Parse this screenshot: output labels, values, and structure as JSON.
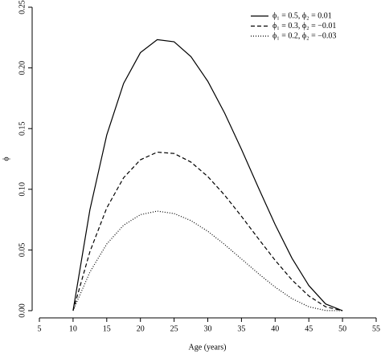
{
  "chart_data": {
    "type": "line",
    "xlabel": "Age (years)",
    "ylabel": "ϕ",
    "x": [
      10,
      12.5,
      15,
      17.5,
      20,
      22.5,
      25,
      27.5,
      30,
      32.5,
      35,
      37.5,
      40,
      42.5,
      45,
      47.5,
      50
    ],
    "series": [
      {
        "name": "ϕ₁ = 0.5, ϕ₂ = 0.01",
        "color": "#000000",
        "linestyle": "solid",
        "values": [
          0,
          0.0831,
          0.1447,
          0.1872,
          0.2126,
          0.2233,
          0.2215,
          0.2093,
          0.189,
          0.1628,
          0.1329,
          0.1015,
          0.0709,
          0.0432,
          0.0207,
          0.0055,
          0
        ]
      },
      {
        "name": "ϕ₁ = 0.3, ϕ₂ = −0.01",
        "color": "#000000",
        "linestyle": "dashed",
        "values": [
          0,
          0.0486,
          0.0846,
          0.1095,
          0.1243,
          0.1306,
          0.1295,
          0.1224,
          0.1105,
          0.0952,
          0.0777,
          0.0594,
          0.0415,
          0.0253,
          0.0121,
          0.0032,
          0
        ]
      },
      {
        "name": "ϕ₁ = 0.2, ϕ₂ = −0.03",
        "color": "#000000",
        "linestyle": "dotted",
        "values": [
          0,
          0.0318,
          0.0549,
          0.0704,
          0.0791,
          0.082,
          0.08,
          0.0742,
          0.0654,
          0.0545,
          0.0426,
          0.0306,
          0.0194,
          0.0099,
          0.0032,
          0.0001,
          0
        ]
      }
    ],
    "xlim": [
      5,
      55
    ],
    "xticks": [
      5,
      10,
      15,
      20,
      25,
      30,
      35,
      40,
      45,
      50,
      55
    ],
    "ylim": [
      0,
      0.25
    ],
    "yticks": [
      {
        "value": 0,
        "label": "0.00"
      },
      {
        "value": 0.05,
        "label": "0.05"
      },
      {
        "value": 0.1,
        "label": "0.10"
      },
      {
        "value": 0.15,
        "label": "0.15"
      },
      {
        "value": 0.2,
        "label": "0.20"
      },
      {
        "value": 0.25,
        "label": "0.25"
      }
    ],
    "legend": "top-right"
  }
}
